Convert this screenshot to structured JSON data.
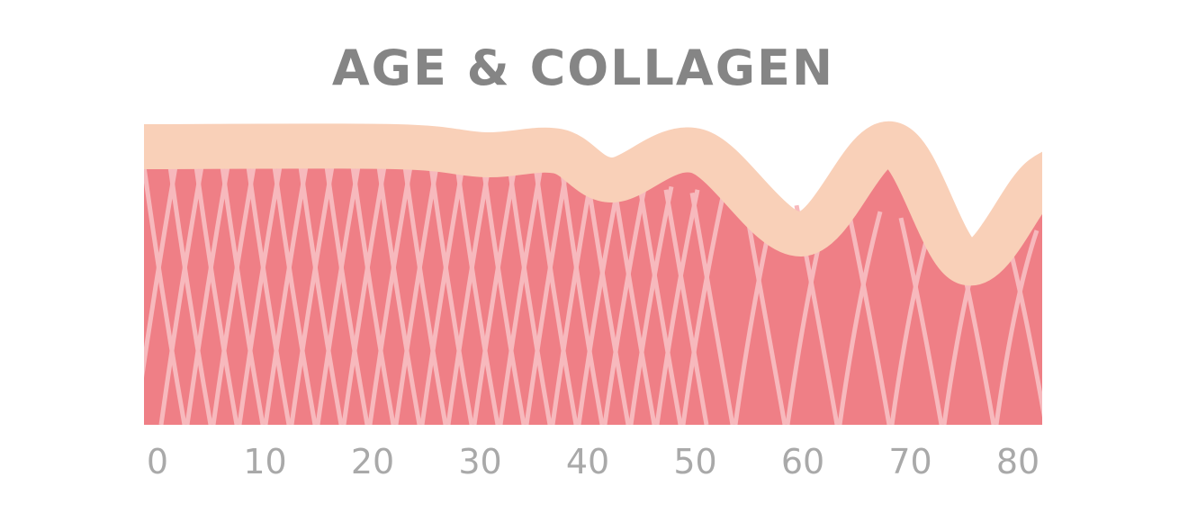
{
  "title": "AGE & COLLAGEN",
  "age_axis": {
    "ticks": [
      0,
      10,
      20,
      30,
      40,
      50,
      60,
      70,
      80
    ]
  }
}
